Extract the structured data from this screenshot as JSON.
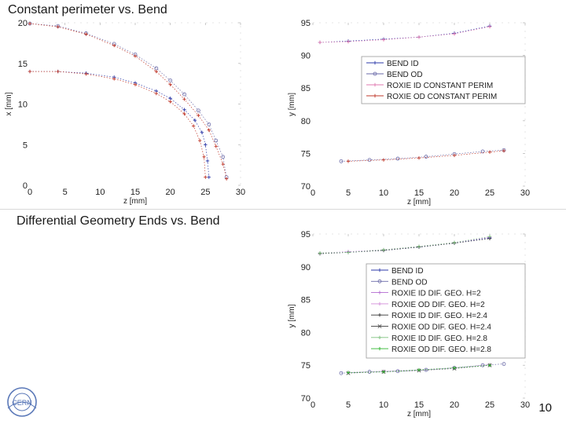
{
  "titles": {
    "top": "Constant perimeter vs. Bend",
    "bottom": "Differential Geometry Ends vs. Bend"
  },
  "page_number": "10",
  "logo_text": "CERN",
  "chart_data": [
    {
      "id": "c1",
      "type": "scatter",
      "xlabel": "z [mm]",
      "ylabel": "x [mm]",
      "xlim": [
        0,
        30
      ],
      "ylim": [
        0,
        20
      ],
      "xticks": [
        0,
        5,
        10,
        15,
        20,
        25,
        30
      ],
      "yticks": [
        0,
        5,
        10,
        15,
        20
      ],
      "grid": false,
      "series": [
        {
          "color": "#2e3aa8",
          "marker": "plus",
          "points": [
            [
              0,
              14
            ],
            [
              4,
              14
            ],
            [
              8,
              13.8
            ],
            [
              12,
              13.3
            ],
            [
              15,
              12.6
            ],
            [
              18,
              11.6
            ],
            [
              20,
              10.7
            ],
            [
              22,
              9.3
            ],
            [
              23.5,
              8
            ],
            [
              24.5,
              6.5
            ],
            [
              25,
              5
            ],
            [
              25.3,
              3
            ],
            [
              25.5,
              1
            ]
          ]
        },
        {
          "color": "#6a6aa8",
          "marker": "circle",
          "points": [
            [
              0,
              19.9
            ],
            [
              4,
              19.6
            ],
            [
              8,
              18.7
            ],
            [
              12,
              17.4
            ],
            [
              15,
              16.1
            ],
            [
              18,
              14.4
            ],
            [
              20,
              12.9
            ],
            [
              22,
              11.2
            ],
            [
              24,
              9.2
            ],
            [
              25.5,
              7.5
            ],
            [
              26.5,
              5.5
            ],
            [
              27.5,
              3.5
            ],
            [
              28,
              1
            ]
          ]
        },
        {
          "color": "#c0392b",
          "marker": "plus",
          "points": [
            [
              0,
              14
            ],
            [
              4,
              14
            ],
            [
              8,
              13.7
            ],
            [
              12,
              13.1
            ],
            [
              15,
              12.4
            ],
            [
              18,
              11.3
            ],
            [
              20,
              10.3
            ],
            [
              22,
              8.8
            ],
            [
              23.3,
              7.3
            ],
            [
              24.2,
              5.5
            ],
            [
              24.8,
              3.5
            ],
            [
              25,
              1
            ]
          ]
        },
        {
          "color": "#c0392b",
          "marker": "plus",
          "points": [
            [
              0,
              19.9
            ],
            [
              4,
              19.5
            ],
            [
              8,
              18.6
            ],
            [
              12,
              17.2
            ],
            [
              15,
              15.9
            ],
            [
              18,
              14
            ],
            [
              20,
              12.4
            ],
            [
              22,
              10.6
            ],
            [
              24,
              8.6
            ],
            [
              25.5,
              6.8
            ],
            [
              26.5,
              4.8
            ],
            [
              27.5,
              2.6
            ],
            [
              28,
              0.8
            ]
          ]
        }
      ]
    },
    {
      "id": "c2",
      "type": "scatter",
      "xlabel": "z [mm]",
      "ylabel": "y [mm]",
      "xlim": [
        0,
        30
      ],
      "ylim": [
        70,
        95
      ],
      "xticks": [
        0,
        5,
        10,
        15,
        20,
        25,
        30
      ],
      "yticks": [
        70,
        75,
        80,
        85,
        90,
        95
      ],
      "grid": false,
      "legend": "right",
      "series": [
        {
          "name": "BEND ID",
          "color": "#2e3aa8",
          "marker": "plus",
          "points": [
            [
              1,
              92
            ],
            [
              5,
              92.2
            ],
            [
              10,
              92.5
            ],
            [
              15,
              92.8
            ],
            [
              20,
              93.4
            ],
            [
              25,
              94.5
            ]
          ]
        },
        {
          "name": "BEND OD",
          "color": "#6a6aa8",
          "marker": "circle",
          "points": [
            [
              4,
              73.8
            ],
            [
              8,
              74
            ],
            [
              12,
              74.2
            ],
            [
              16,
              74.5
            ],
            [
              20,
              74.9
            ],
            [
              24,
              75.3
            ],
            [
              27,
              75.5
            ]
          ]
        },
        {
          "name": "ROXIE ID CONSTANT PERIM",
          "color": "#e07ab0",
          "marker": "plus",
          "points": [
            [
              1,
              92
            ],
            [
              5,
              92.1
            ],
            [
              10,
              92.4
            ],
            [
              15,
              92.8
            ],
            [
              20,
              93.3
            ],
            [
              25,
              94.4
            ]
          ]
        },
        {
          "name": "ROXIE OD CONSTANT PERIM",
          "color": "#c0392b",
          "marker": "plus",
          "points": [
            [
              5,
              73.8
            ],
            [
              10,
              74
            ],
            [
              15,
              74.3
            ],
            [
              20,
              74.7
            ],
            [
              25,
              75.2
            ],
            [
              27,
              75.4
            ]
          ]
        }
      ]
    },
    {
      "id": "c3",
      "type": "scatter",
      "xlabel": "z [mm]",
      "ylabel": "y [mm]",
      "xlim": [
        0,
        30
      ],
      "ylim": [
        70,
        95
      ],
      "xticks": [
        0,
        5,
        10,
        15,
        20,
        25,
        30
      ],
      "yticks": [
        70,
        75,
        80,
        85,
        90,
        95
      ],
      "grid": false,
      "legend": "right",
      "series": [
        {
          "name": "BEND ID",
          "color": "#2e3aa8",
          "marker": "plus",
          "points": [
            [
              1,
              92
            ],
            [
              5,
              92.2
            ],
            [
              10,
              92.5
            ],
            [
              15,
              93
            ],
            [
              20,
              93.6
            ],
            [
              25,
              94.4
            ]
          ]
        },
        {
          "name": "BEND OD",
          "color": "#6a6aa8",
          "marker": "circle",
          "points": [
            [
              4,
              73.8
            ],
            [
              8,
              74
            ],
            [
              12,
              74.1
            ],
            [
              16,
              74.3
            ],
            [
              20,
              74.6
            ],
            [
              24,
              75
            ],
            [
              27,
              75.2
            ]
          ]
        },
        {
          "name": "ROXIE ID DIF. GEO. H=2",
          "color": "#b36ad0",
          "marker": "plus",
          "points": [
            [
              1,
              92.1
            ],
            [
              5,
              92.3
            ],
            [
              10,
              92.6
            ],
            [
              15,
              93.1
            ],
            [
              20,
              93.7
            ],
            [
              25,
              94.5
            ]
          ]
        },
        {
          "name": "ROXIE OD DIF. GEO. H=2",
          "color": "#d08ad8",
          "marker": "plus",
          "points": [
            [
              5,
              73.9
            ],
            [
              10,
              74.1
            ],
            [
              15,
              74.3
            ],
            [
              20,
              74.6
            ],
            [
              25,
              75.1
            ]
          ]
        },
        {
          "name": "ROXIE ID DIF. GEO. H=2.4",
          "color": "#333333",
          "marker": "plus",
          "points": [
            [
              1,
              92
            ],
            [
              5,
              92.2
            ],
            [
              10,
              92.5
            ],
            [
              15,
              93
            ],
            [
              20,
              93.6
            ],
            [
              25,
              94.3
            ]
          ]
        },
        {
          "name": "ROXIE OD DIF. GEO. H=2.4",
          "color": "#555555",
          "marker": "cross",
          "points": [
            [
              5,
              73.8
            ],
            [
              10,
              74
            ],
            [
              15,
              74.2
            ],
            [
              20,
              74.5
            ],
            [
              25,
              75
            ]
          ]
        },
        {
          "name": "ROXIE ID DIF. GEO. H=2.8",
          "color": "#7cc07c",
          "marker": "plus",
          "points": [
            [
              1,
              92.1
            ],
            [
              5,
              92.2
            ],
            [
              10,
              92.6
            ],
            [
              15,
              93.1
            ],
            [
              20,
              93.7
            ],
            [
              25,
              94.6
            ]
          ]
        },
        {
          "name": "ROXIE OD DIF. GEO. H=2.8",
          "color": "#2bb52b",
          "marker": "plus",
          "points": [
            [
              5,
              73.9
            ],
            [
              10,
              74
            ],
            [
              15,
              74.3
            ],
            [
              20,
              74.6
            ],
            [
              25,
              75
            ]
          ]
        }
      ]
    }
  ]
}
